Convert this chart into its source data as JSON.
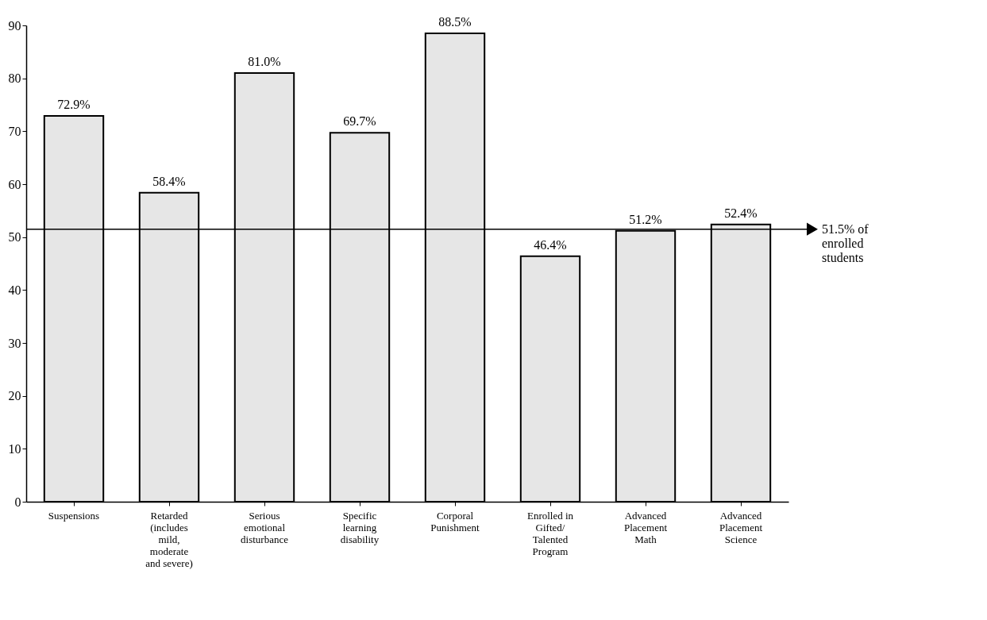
{
  "chart_data": {
    "type": "bar",
    "categories": [
      "Suspensions",
      "Retarded\n(includes\nmild,\nmoderate\nand severe)",
      "Serious\nemotional\ndisturbance",
      "Specific\nlearning\ndisability",
      "Corporal\nPunishment",
      "Enrolled in\nGifted/\nTalented\nProgram",
      "Advanced\nPlacement\nMath",
      "Advanced\nPlacement\nScience"
    ],
    "values": [
      72.9,
      58.4,
      81.0,
      69.7,
      88.5,
      46.4,
      51.2,
      52.4
    ],
    "value_labels": [
      "72.9%",
      "58.4%",
      "81.0%",
      "69.7%",
      "88.5%",
      "46.4%",
      "51.2%",
      "52.4%"
    ],
    "color": "#e6e6e6",
    "ylim": [
      0,
      90
    ],
    "yticks": [
      0,
      10,
      20,
      30,
      40,
      50,
      60,
      70,
      80,
      90
    ],
    "grid": false,
    "ref_lines": [
      {
        "axis": "y",
        "value": 51.5,
        "label": "51.5% of\nenrolled\nstudents",
        "color": "#000000"
      }
    ]
  }
}
